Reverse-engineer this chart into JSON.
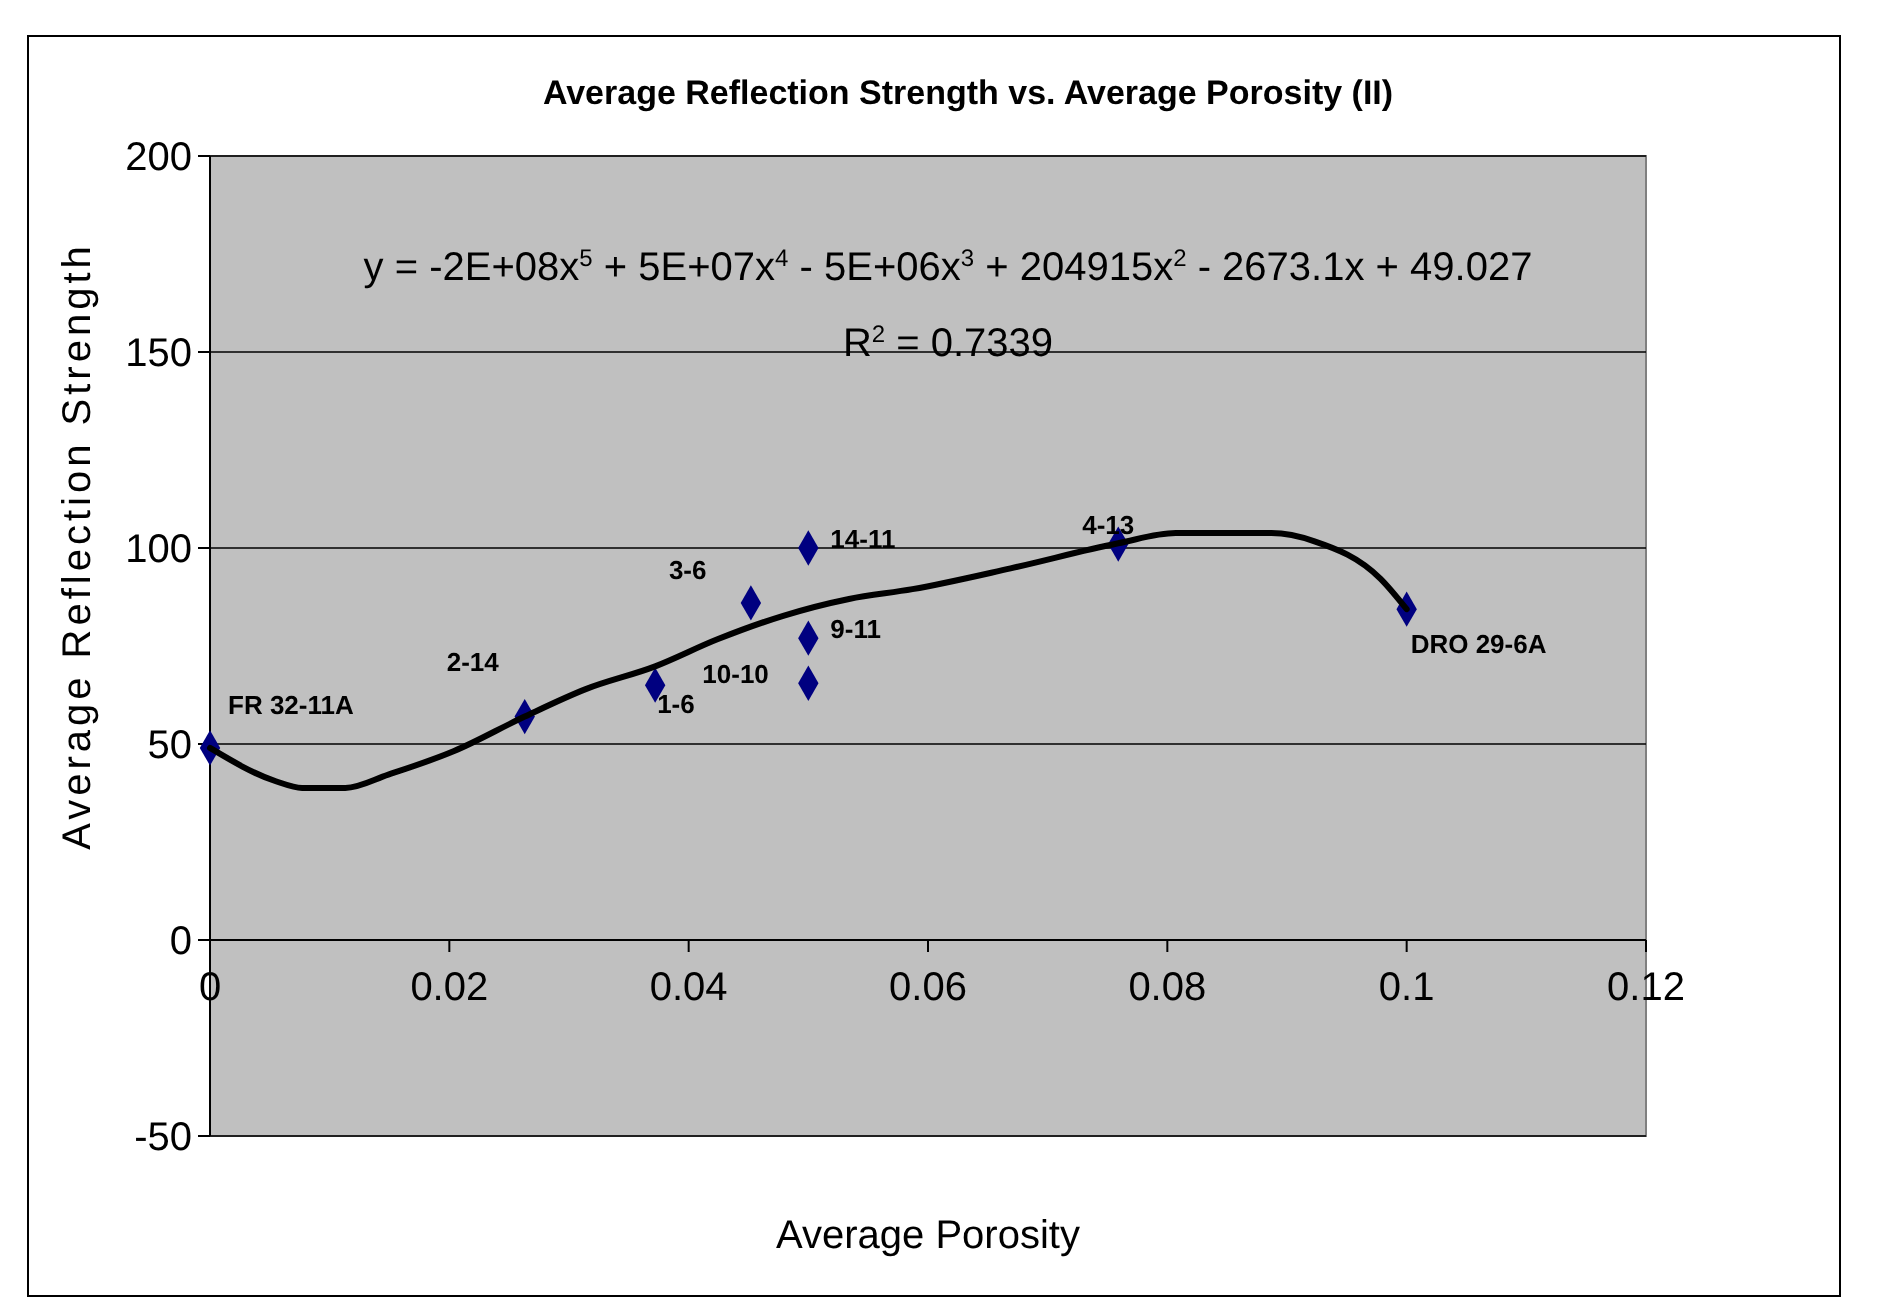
{
  "chart_data": {
    "type": "scatter",
    "title": "Average Reflection Strength vs. Average Porosity (II)",
    "xlabel": "Average Porosity",
    "ylabel": "Average Reflection Strength",
    "xlim": [
      0,
      0.12
    ],
    "xticks": [
      0,
      0.02,
      0.04,
      0.06,
      0.08,
      0.1,
      0.12
    ],
    "ylim": [
      -50,
      200
    ],
    "yticks": [
      -50,
      0,
      50,
      100,
      150,
      200
    ],
    "grid": "y",
    "series": [
      {
        "color": "#000080",
        "marker": "diamond",
        "x": [
          0,
          0.0263,
          0.0372,
          0.0452,
          0.05,
          0.05,
          0.05,
          0.0759,
          0.1
        ],
        "values": [
          49,
          57,
          65,
          86,
          100,
          77,
          65.5,
          101,
          84.4
        ]
      },
      {
        "type": "line",
        "color": "#000000",
        "marker": "none",
        "line_style": "solid",
        "x": [
          0,
          0.0055,
          0.0077,
          0.0113,
          0.0149,
          0.0204,
          0.0263,
          0.0314,
          0.0372,
          0.0424,
          0.0479,
          0.0534,
          0.0587,
          0.0669,
          0.0759,
          0.0807,
          0.0887,
          0.0923,
          0.0978,
          0.1
        ],
        "values": [
          49,
          40.5,
          38.8,
          38.8,
          42.2,
          48.2,
          57,
          64,
          69.8,
          76.7,
          82.7,
          87,
          89.5,
          94.8,
          101.2,
          103.8,
          103.8,
          101.7,
          92.2,
          84.4
        ]
      }
    ],
    "annotations": [
      "y = -2E+08x$^{5}$ + 5E+07x$^{4}$ - 5E+06x$^{3}$ + 204915x$^{2}$ - 2673.1x + 49.027",
      "R$^{2}$ = 0.7339",
      {
        "text": "FR 32-11A",
        "x": 0,
        "y": 49
      },
      {
        "text": "2-14",
        "x": 0.0263,
        "y": 57
      },
      {
        "text": "1-6",
        "x": 0.0372,
        "y": 65
      },
      {
        "text": "3-6",
        "x": 0.0452,
        "y": 86
      },
      {
        "text": "14-11",
        "x": 0.05,
        "y": 100
      },
      {
        "text": "9-11",
        "x": 0.05,
        "y": 77
      },
      {
        "text": "10-10",
        "x": 0.05,
        "y": 65.5
      },
      {
        "text": "4-13",
        "x": 0.0759,
        "y": 101
      },
      {
        "text": "DRO 29-6A",
        "x": 0.1,
        "y": 84.4
      }
    ]
  }
}
